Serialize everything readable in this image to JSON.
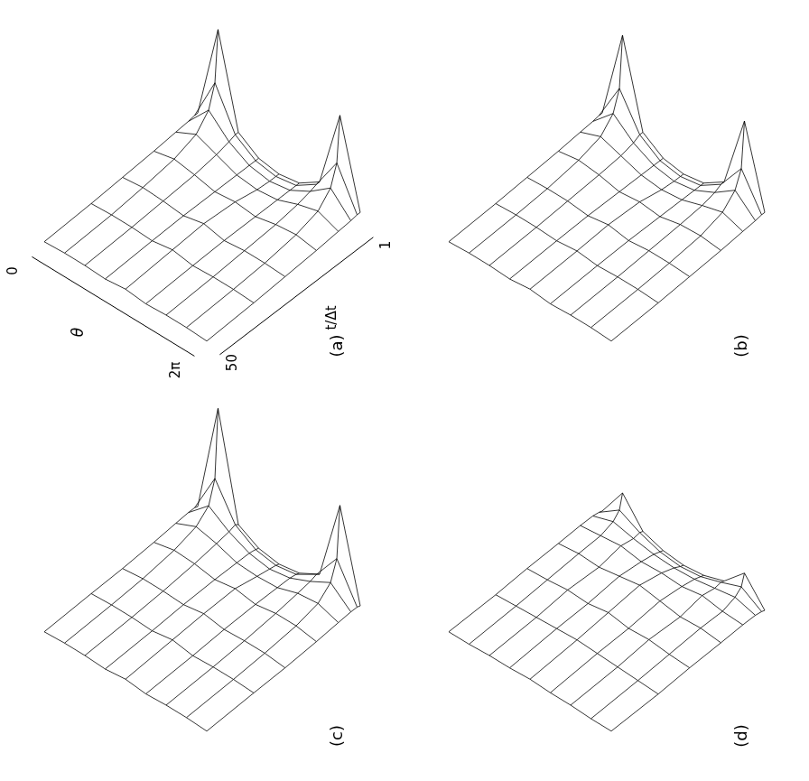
{
  "chart_data": [
    {
      "type": "surface",
      "label": "(a)",
      "x_label": "θ",
      "y_label": "t/Δt",
      "tick_labels": true,
      "xlim": [
        0,
        6.283
      ],
      "ylim": [
        1,
        50
      ],
      "xticks": [
        {
          "value": 0,
          "label": "0"
        },
        {
          "value": 6.283,
          "label": "2π"
        }
      ],
      "yticks": [
        1,
        50
      ],
      "x": [
        0,
        0.785,
        1.571,
        2.356,
        3.142,
        3.927,
        4.712,
        5.498,
        6.283
      ],
      "y": [
        1,
        2,
        4,
        8,
        15,
        25,
        35,
        50
      ],
      "z": [
        [
          0.15,
          1.0,
          0.2,
          0.08,
          0.05,
          0.08,
          0.2,
          0.9,
          0.15
        ],
        [
          0.15,
          0.55,
          0.2,
          0.08,
          0.05,
          0.08,
          0.2,
          0.5,
          0.15
        ],
        [
          0.14,
          0.35,
          0.18,
          0.08,
          0.05,
          0.08,
          0.18,
          0.32,
          0.14
        ],
        [
          0.13,
          0.22,
          0.15,
          0.08,
          0.06,
          0.08,
          0.15,
          0.2,
          0.13
        ],
        [
          0.11,
          0.15,
          0.12,
          0.08,
          0.1,
          0.08,
          0.12,
          0.14,
          0.11
        ],
        [
          0.09,
          0.11,
          0.1,
          0.08,
          0.12,
          0.08,
          0.1,
          0.1,
          0.09
        ],
        [
          0.07,
          0.08,
          0.08,
          0.07,
          0.1,
          0.07,
          0.08,
          0.08,
          0.07
        ],
        [
          0.05,
          0.06,
          0.06,
          0.05,
          0.07,
          0.05,
          0.06,
          0.06,
          0.05
        ]
      ]
    },
    {
      "type": "surface",
      "label": "(b)",
      "tick_labels": false,
      "xlim": [
        0,
        6.283
      ],
      "ylim": [
        1,
        50
      ],
      "x": [
        0,
        0.785,
        1.571,
        2.356,
        3.142,
        3.927,
        4.712,
        5.498,
        6.283
      ],
      "y": [
        1,
        2,
        4,
        8,
        15,
        25,
        35,
        50
      ],
      "z": [
        [
          0.15,
          0.95,
          0.2,
          0.08,
          0.05,
          0.08,
          0.2,
          0.85,
          0.15
        ],
        [
          0.15,
          0.5,
          0.2,
          0.08,
          0.05,
          0.08,
          0.2,
          0.45,
          0.15
        ],
        [
          0.14,
          0.32,
          0.17,
          0.08,
          0.05,
          0.08,
          0.17,
          0.3,
          0.14
        ],
        [
          0.13,
          0.2,
          0.14,
          0.08,
          0.06,
          0.08,
          0.14,
          0.19,
          0.13
        ],
        [
          0.11,
          0.14,
          0.12,
          0.08,
          0.1,
          0.08,
          0.12,
          0.13,
          0.11
        ],
        [
          0.09,
          0.1,
          0.1,
          0.08,
          0.11,
          0.08,
          0.1,
          0.1,
          0.09
        ],
        [
          0.07,
          0.08,
          0.08,
          0.07,
          0.09,
          0.07,
          0.08,
          0.08,
          0.07
        ],
        [
          0.05,
          0.06,
          0.06,
          0.05,
          0.07,
          0.05,
          0.06,
          0.06,
          0.05
        ]
      ]
    },
    {
      "type": "surface",
      "label": "(c)",
      "tick_labels": false,
      "xlim": [
        0,
        6.283
      ],
      "ylim": [
        1,
        50
      ],
      "x": [
        0,
        0.785,
        1.571,
        2.356,
        3.142,
        3.927,
        4.712,
        5.498,
        6.283
      ],
      "y": [
        1,
        2,
        4,
        8,
        15,
        25,
        35,
        50
      ],
      "z": [
        [
          0.12,
          1.1,
          0.18,
          0.08,
          0.05,
          0.08,
          0.18,
          0.9,
          0.12
        ],
        [
          0.13,
          0.5,
          0.2,
          0.09,
          0.06,
          0.09,
          0.2,
          0.45,
          0.13
        ],
        [
          0.13,
          0.3,
          0.18,
          0.1,
          0.07,
          0.1,
          0.18,
          0.28,
          0.13
        ],
        [
          0.12,
          0.2,
          0.16,
          0.1,
          0.09,
          0.1,
          0.16,
          0.18,
          0.12
        ],
        [
          0.1,
          0.14,
          0.13,
          0.1,
          0.13,
          0.1,
          0.13,
          0.13,
          0.1
        ],
        [
          0.08,
          0.1,
          0.1,
          0.09,
          0.12,
          0.09,
          0.1,
          0.1,
          0.08
        ],
        [
          0.07,
          0.08,
          0.08,
          0.07,
          0.1,
          0.07,
          0.08,
          0.08,
          0.07
        ],
        [
          0.05,
          0.06,
          0.06,
          0.05,
          0.07,
          0.05,
          0.06,
          0.06,
          0.05
        ]
      ]
    },
    {
      "type": "surface",
      "label": "(d)",
      "tick_labels": false,
      "xlim": [
        0,
        6.283
      ],
      "ylim": [
        1,
        50
      ],
      "x": [
        0,
        0.785,
        1.571,
        2.356,
        3.142,
        3.927,
        4.712,
        5.498,
        6.283
      ],
      "y": [
        1,
        2,
        4,
        8,
        15,
        25,
        35,
        50
      ],
      "z": [
        [
          0.08,
          0.35,
          0.12,
          0.06,
          0.04,
          0.06,
          0.12,
          0.3,
          0.08
        ],
        [
          0.09,
          0.22,
          0.13,
          0.07,
          0.05,
          0.07,
          0.13,
          0.2,
          0.09
        ],
        [
          0.1,
          0.16,
          0.12,
          0.09,
          0.08,
          0.09,
          0.12,
          0.15,
          0.1
        ],
        [
          0.1,
          0.12,
          0.14,
          0.11,
          0.12,
          0.11,
          0.14,
          0.11,
          0.1
        ],
        [
          0.09,
          0.11,
          0.1,
          0.13,
          0.16,
          0.13,
          0.1,
          0.11,
          0.09
        ],
        [
          0.08,
          0.09,
          0.11,
          0.1,
          0.13,
          0.1,
          0.11,
          0.09,
          0.08
        ],
        [
          0.06,
          0.07,
          0.08,
          0.09,
          0.1,
          0.09,
          0.08,
          0.07,
          0.06
        ],
        [
          0.05,
          0.05,
          0.06,
          0.06,
          0.07,
          0.06,
          0.06,
          0.05,
          0.05
        ]
      ]
    }
  ]
}
